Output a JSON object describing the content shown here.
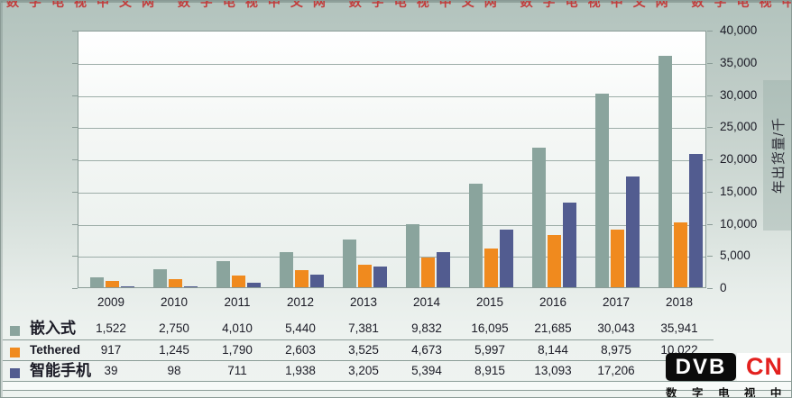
{
  "watermark_top": "数字电视中文网 数字电视中文网 数字电视中文网 数字电视中文网 数字电视中文网",
  "colors": {
    "embedded": "#8aa49d",
    "tethered": "#f08a1e",
    "smartphone": "#525c90",
    "logo_red": "#e3211f",
    "grid": "#9dada8",
    "axis": "#8b9c97"
  },
  "chart_data": {
    "type": "bar",
    "categories": [
      "2009",
      "2010",
      "2011",
      "2012",
      "2013",
      "2014",
      "2015",
      "2016",
      "2017",
      "2018"
    ],
    "series": [
      {
        "name": "嵌入式",
        "color_key": "embedded",
        "values": [
          1522,
          2750,
          4010,
          5440,
          7381,
          9832,
          16095,
          21685,
          30043,
          35941
        ]
      },
      {
        "name": "Tethered",
        "color_key": "tethered",
        "values": [
          917,
          1245,
          1790,
          2603,
          3525,
          4673,
          5997,
          8144,
          8975,
          10022
        ]
      },
      {
        "name": "智能手机",
        "color_key": "smartphone",
        "values": [
          39,
          98,
          711,
          1938,
          3205,
          5394,
          8915,
          13093,
          17206,
          20700
        ]
      }
    ],
    "title": "",
    "xlabel": "",
    "ylabel": "年出货量/千",
    "ylim": [
      0,
      40000
    ],
    "ytick_step": 5000,
    "ytick_labels": [
      "40,000",
      "35,000",
      "30,000",
      "25,000",
      "20,000",
      "15,000",
      "10,000",
      "5,000",
      "0"
    ],
    "grid": true,
    "legend_position": "table-left"
  },
  "table": {
    "header": [
      "2009",
      "2010",
      "2011",
      "2012",
      "2013",
      "2014",
      "2015",
      "2016",
      "2017",
      "2018"
    ],
    "rows": [
      {
        "label": "嵌入式",
        "label_style": "cjk",
        "color_key": "embedded",
        "values": [
          "1,522",
          "2,750",
          "4,010",
          "5,440",
          "7,381",
          "9,832",
          "16,095",
          "21,685",
          "30,043",
          "35,941"
        ]
      },
      {
        "label": "Tethered",
        "label_style": "latin",
        "color_key": "tethered",
        "values": [
          "917",
          "1,245",
          "1,790",
          "2,603",
          "3,525",
          "4,673",
          "5,997",
          "8,144",
          "8,975",
          "10,022"
        ]
      },
      {
        "label": "智能手机",
        "label_style": "cjk",
        "color_key": "smartphone",
        "values": [
          "39",
          "98",
          "711",
          "1,938",
          "3,205",
          "5,394",
          "8,915",
          "13,093",
          "17,206",
          ""
        ]
      }
    ]
  },
  "logo": {
    "dvb": "DVB",
    "cn": "CN",
    "subtitle": "数 字 电 视 中 文 网"
  }
}
